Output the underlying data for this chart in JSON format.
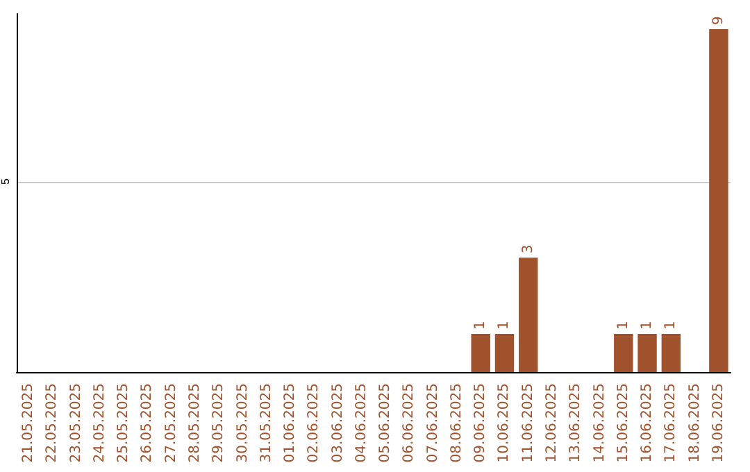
{
  "chart_data": {
    "type": "bar",
    "categories": [
      "21.05.2025",
      "22.05.2025",
      "23.05.2025",
      "24.05.2025",
      "25.05.2025",
      "26.05.2025",
      "27.05.2025",
      "28.05.2025",
      "29.05.2025",
      "30.05.2025",
      "31.05.2025",
      "01.06.2025",
      "02.06.2025",
      "03.06.2025",
      "04.06.2025",
      "05.06.2025",
      "06.06.2025",
      "07.06.2025",
      "08.06.2025",
      "09.06.2025",
      "10.06.2025",
      "11.06.2025",
      "12.06.2025",
      "13.06.2025",
      "14.06.2025",
      "15.06.2025",
      "16.06.2025",
      "17.06.2025",
      "18.06.2025",
      "19.06.2025"
    ],
    "values": [
      null,
      null,
      null,
      null,
      null,
      null,
      null,
      null,
      null,
      null,
      null,
      null,
      null,
      null,
      null,
      null,
      null,
      null,
      null,
      1,
      1,
      3,
      null,
      null,
      null,
      1,
      1,
      1,
      null,
      9
    ],
    "data_labels": true,
    "color": "#a0522d",
    "ylim": [
      0,
      9.4
    ],
    "yticks": [
      5
    ],
    "grid": "y"
  }
}
